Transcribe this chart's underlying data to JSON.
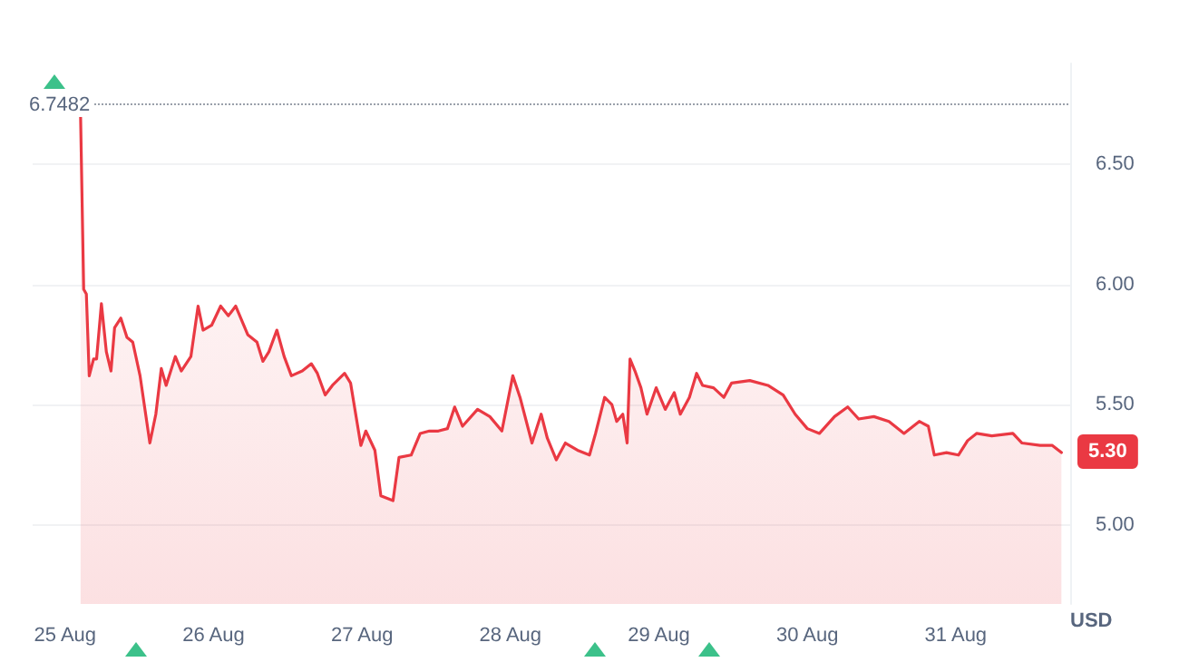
{
  "chart_data": {
    "type": "area",
    "ylabel": "USD",
    "x": [
      "--08-25T02:30",
      "--08-25T03:00",
      "--08-25T03:26",
      "--08-25T03:54",
      "--08-25T04:36",
      "--08-25T05:05",
      "--08-25T05:52",
      "--08-25T06:40",
      "--08-25T07:25",
      "--08-25T08:00",
      "--08-25T09:00",
      "--08-25T10:00",
      "--08-25T10:56",
      "--08-25T12:07",
      "--08-25T13:42",
      "--08-25T14:40",
      "--08-25T15:33",
      "--08-25T16:20",
      "--08-25T17:49",
      "--08-25T18:47",
      "--08-25T20:20",
      "--08-25T21:30",
      "--08-25T22:18",
      "--08-25T23:41",
      "--08-26T01:09",
      "--08-26T02:24",
      "--08-26T03:35",
      "--08-26T05:33",
      "--08-26T07:01",
      "--08-26T07:59",
      "--08-26T08:57",
      "--08-26T10:14",
      "--08-26T11:25",
      "--08-26T12:35",
      "--08-26T14:21",
      "--08-26T15:49",
      "--08-26T16:47",
      "--08-26T18:03",
      "--08-26T19:13",
      "--08-26T21:11",
      "--08-26T22:09",
      "--08-26T23:49",
      "--08-27T00:37",
      "--08-27T02:05",
      "--08-27T03:03",
      "--08-27T05:01",
      "--08-27T05:59",
      "--08-27T07:57",
      "--08-27T09:25",
      "--08-27T10:53",
      "--08-27T12:21",
      "--08-27T13:49",
      "--08-27T14:59",
      "--08-27T16:15",
      "--08-27T18:41",
      "--08-27T20:40",
      "--08-27T22:37",
      "--08-28T00:23",
      "--08-28T01:33",
      "--08-28T03:29",
      "--08-28T04:58",
      "--08-28T05:58",
      "--08-28T07:25",
      "--08-28T08:53",
      "--08-28T10:50",
      "--08-28T12:47",
      "--08-28T13:46",
      "--08-28T15:14",
      "--08-28T16:24",
      "--08-28T17:11",
      "--08-28T18:10",
      "--08-28T18:52",
      "--08-28T19:20",
      "--08-28T20:08",
      "--08-28T21:06",
      "--08-28T22:05",
      "--08-28T23:34",
      "--08-29T01:02",
      "--08-29T02:29",
      "--08-29T03:28",
      "--08-29T04:56",
      "--08-29T06:06",
      "--08-29T07:04",
      "--08-29T08:50",
      "--08-29T10:30",
      "--08-29T11:46",
      "--08-29T14:42",
      "--08-29T17:38",
      "--08-29T20:06",
      "--08-29T22:02",
      "--08-30T00:00",
      "--08-30T01:58",
      "--08-30T04:24",
      "--08-30T06:32",
      "--08-30T08:18",
      "--08-30T10:46",
      "--08-30T13:12",
      "--08-30T15:38",
      "--08-30T18:06",
      "--08-30T19:34",
      "--08-30T20:32",
      "--08-30T22:30",
      "--08-31T00:26",
      "--08-31T01:55",
      "--08-31T03:22",
      "--08-31T05:50",
      "--08-31T09:14",
      "--08-31T10:43",
      "--08-31T13:38",
      "--08-31T15:37",
      "--08-31T17:05"
    ],
    "series": [
      {
        "color": "#ea3943",
        "values": [
          6.7,
          5.98,
          5.96,
          5.62,
          5.69,
          5.69,
          5.92,
          5.72,
          5.64,
          5.82,
          5.86,
          5.78,
          5.76,
          5.62,
          5.34,
          5.46,
          5.65,
          5.58,
          5.7,
          5.64,
          5.7,
          5.91,
          5.81,
          5.83,
          5.91,
          5.87,
          5.91,
          5.79,
          5.76,
          5.68,
          5.72,
          5.81,
          5.7,
          5.62,
          5.64,
          5.67,
          5.63,
          5.54,
          5.58,
          5.63,
          5.59,
          5.33,
          5.39,
          5.31,
          5.12,
          5.1,
          5.28,
          5.29,
          5.38,
          5.39,
          5.39,
          5.4,
          5.49,
          5.41,
          5.48,
          5.45,
          5.39,
          5.62,
          5.53,
          5.34,
          5.46,
          5.36,
          5.27,
          5.34,
          5.31,
          5.29,
          5.38,
          5.53,
          5.5,
          5.43,
          5.46,
          5.34,
          5.69,
          5.64,
          5.57,
          5.46,
          5.57,
          5.48,
          5.55,
          5.46,
          5.53,
          5.63,
          5.58,
          5.57,
          5.53,
          5.59,
          5.6,
          5.58,
          5.54,
          5.46,
          5.4,
          5.38,
          5.45,
          5.49,
          5.44,
          5.45,
          5.43,
          5.38,
          5.43,
          5.41,
          5.29,
          5.3,
          5.29,
          5.35,
          5.38,
          5.37,
          5.38,
          5.34,
          5.33,
          5.33,
          5.3
        ]
      }
    ],
    "xlim": [
      "--08-24T18:45",
      "--08-31T18:30"
    ],
    "xticks": [
      {
        "value": "--08-25",
        "label": "25 Aug"
      },
      {
        "value": "--08-26",
        "label": "26 Aug"
      },
      {
        "value": "--08-27",
        "label": "27 Aug"
      },
      {
        "value": "--08-28",
        "label": "28 Aug"
      },
      {
        "value": "--08-29",
        "label": "29 Aug"
      },
      {
        "value": "--08-30",
        "label": "30 Aug"
      },
      {
        "value": "--08-31",
        "label": "31 Aug"
      }
    ],
    "ylim": [
      4.67,
      6.92
    ],
    "yticks": [
      {
        "value": 5,
        "label": "5.00"
      },
      {
        "value": 5.5,
        "label": "5.50"
      },
      {
        "value": 6,
        "label": "6.00"
      },
      {
        "value": 6.5,
        "label": "6.50"
      }
    ],
    "ref_lines": [
      {
        "axis": "y",
        "value": 6.7482,
        "label": "6.7482",
        "color": "#9aa0aa",
        "line_style": "dotted"
      }
    ],
    "annotations": [
      "5.30"
    ],
    "grid": "y",
    "marker": "none",
    "line_style": "solid"
  }
}
